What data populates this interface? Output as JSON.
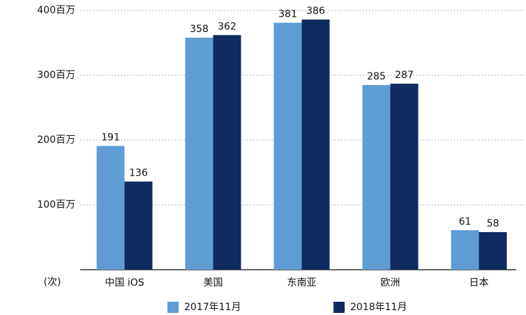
{
  "chart_data": {
    "type": "bar",
    "y_label": "(次)",
    "categories": [
      "中国 iOS",
      "美国",
      "东南亚",
      "欧洲",
      "日本"
    ],
    "series": [
      {
        "name": "2017年11月",
        "color": "#5f9cd4",
        "values": [
          191,
          358,
          381,
          285,
          61
        ]
      },
      {
        "name": "2018年11月",
        "color": "#0f2b5f",
        "values": [
          136,
          362,
          386,
          287,
          58
        ]
      }
    ],
    "ylim": [
      0,
      400
    ],
    "yticks": [
      {
        "value": 100,
        "label": "100百万"
      },
      {
        "value": 200,
        "label": "200百万"
      },
      {
        "value": 300,
        "label": "300百万"
      },
      {
        "value": 400,
        "label": "400百万"
      }
    ],
    "grid": true
  }
}
